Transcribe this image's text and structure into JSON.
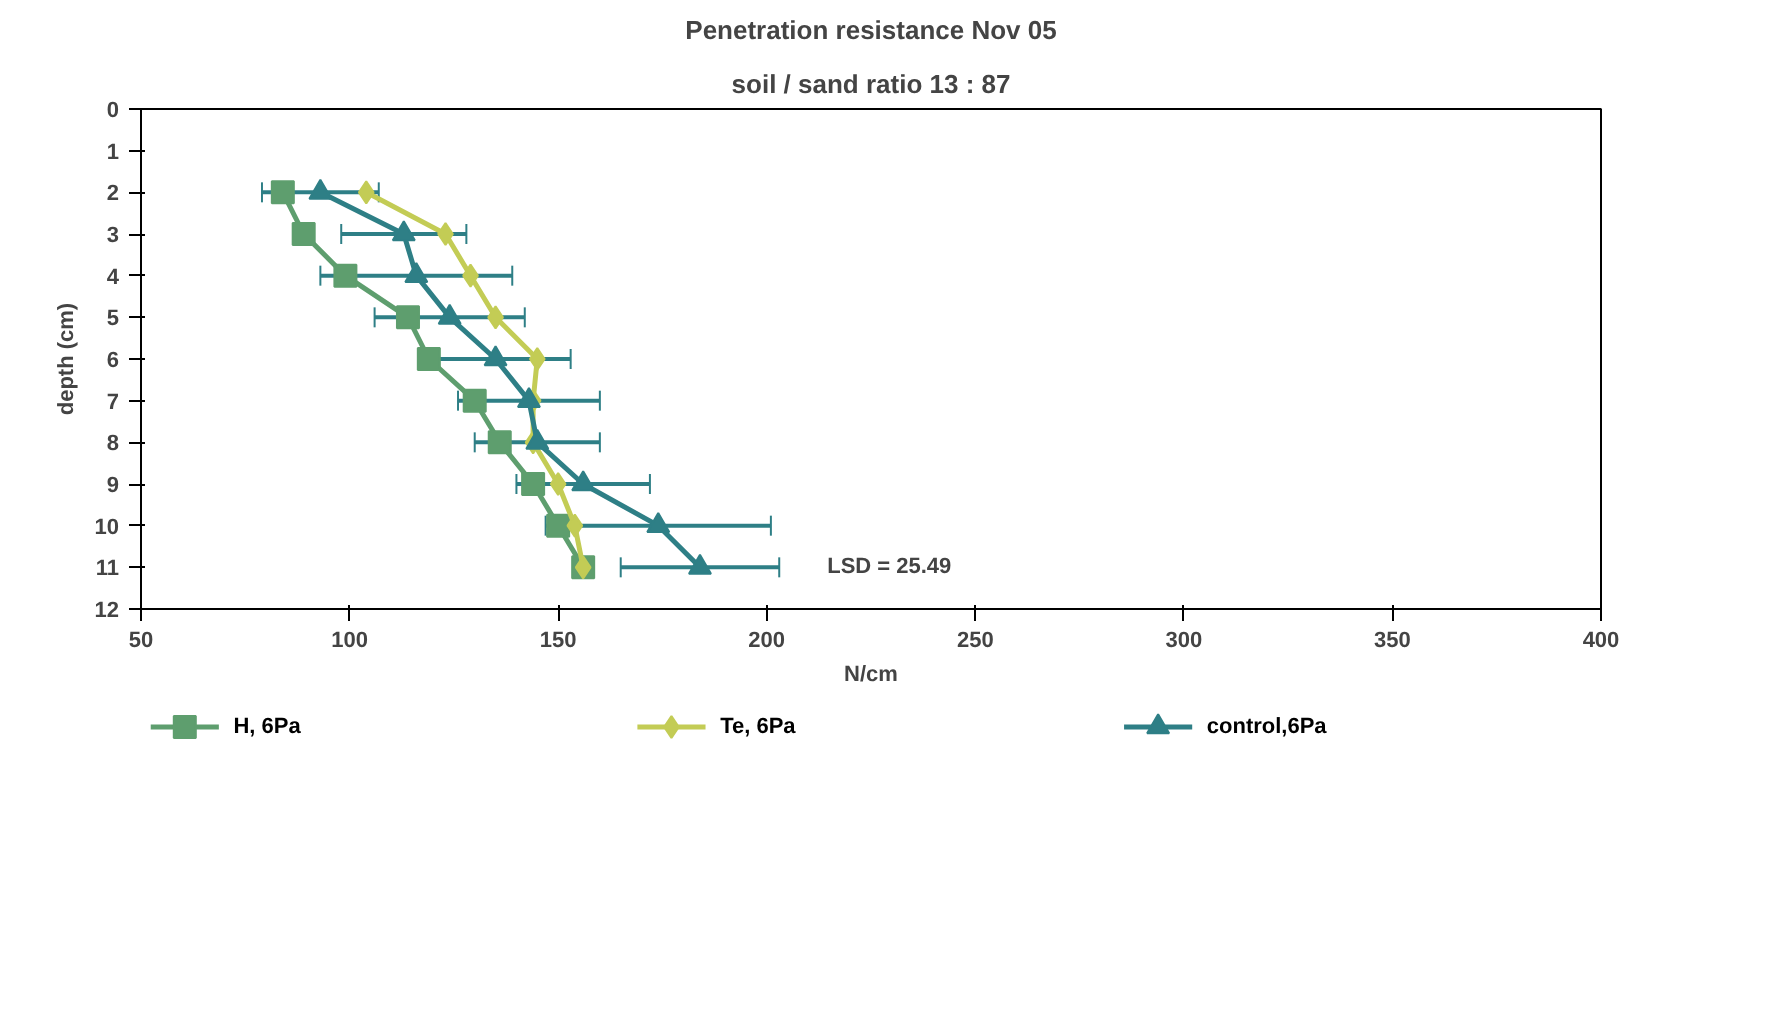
{
  "chart_data": {
    "type": "line",
    "title": "Penetration resistance Nov 05",
    "subtitle": "soil / sand ratio 13 : 87",
    "xlabel": "N/cm",
    "ylabel": "depth (cm)",
    "series": [
      {
        "name": "H, 6Pa",
        "color": "#5e9e6e",
        "marker": "square",
        "x": [
          84,
          89,
          99,
          114,
          119,
          130,
          136,
          144,
          150,
          156
        ],
        "values": [
          2,
          3,
          4,
          5,
          6,
          7,
          8,
          9,
          10,
          11
        ]
      },
      {
        "name": "Te, 6Pa",
        "color": "#c3cc55",
        "marker": "diamond",
        "x": [
          104,
          123,
          129,
          135,
          145,
          144,
          144,
          150,
          154,
          156
        ],
        "values": [
          2,
          3,
          4,
          5,
          6,
          7,
          8,
          9,
          10,
          11
        ]
      },
      {
        "name": "control,6Pa",
        "color": "#2e7f86",
        "marker": "triangle",
        "x": [
          93,
          113,
          116,
          124,
          135,
          143,
          145,
          156,
          174,
          184
        ],
        "values": [
          2,
          3,
          4,
          5,
          6,
          7,
          8,
          9,
          10,
          11
        ],
        "xerrors": [
          14,
          15,
          23,
          18,
          18,
          17,
          15,
          16,
          27,
          19
        ]
      }
    ],
    "xlim": [
      50,
      400
    ],
    "xticks": [
      50,
      100,
      150,
      200,
      250,
      300,
      350,
      400
    ],
    "ylim": [
      12,
      0
    ],
    "yticks": [
      0,
      1,
      2,
      3,
      4,
      5,
      6,
      7,
      8,
      9,
      10,
      11,
      12
    ],
    "annotations": [
      "LSD = 25.49"
    ],
    "grid": false,
    "legend": "bottom"
  }
}
